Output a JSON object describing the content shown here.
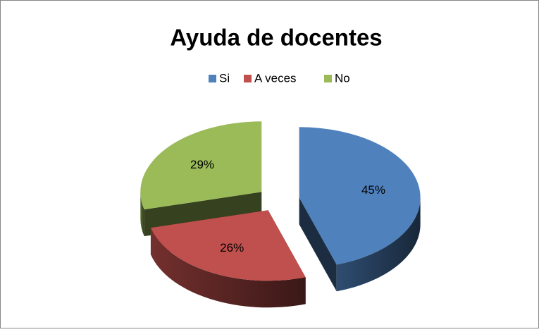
{
  "chart_data": {
    "type": "pie",
    "title": "Ayuda de docentes",
    "categories": [
      "Si",
      "A veces",
      "No"
    ],
    "values": [
      45,
      26,
      29
    ],
    "value_labels": [
      "45%",
      "26%",
      "29%"
    ],
    "colors": [
      "#4f81bd",
      "#c0504d",
      "#9bbb59"
    ],
    "legend": "top"
  }
}
